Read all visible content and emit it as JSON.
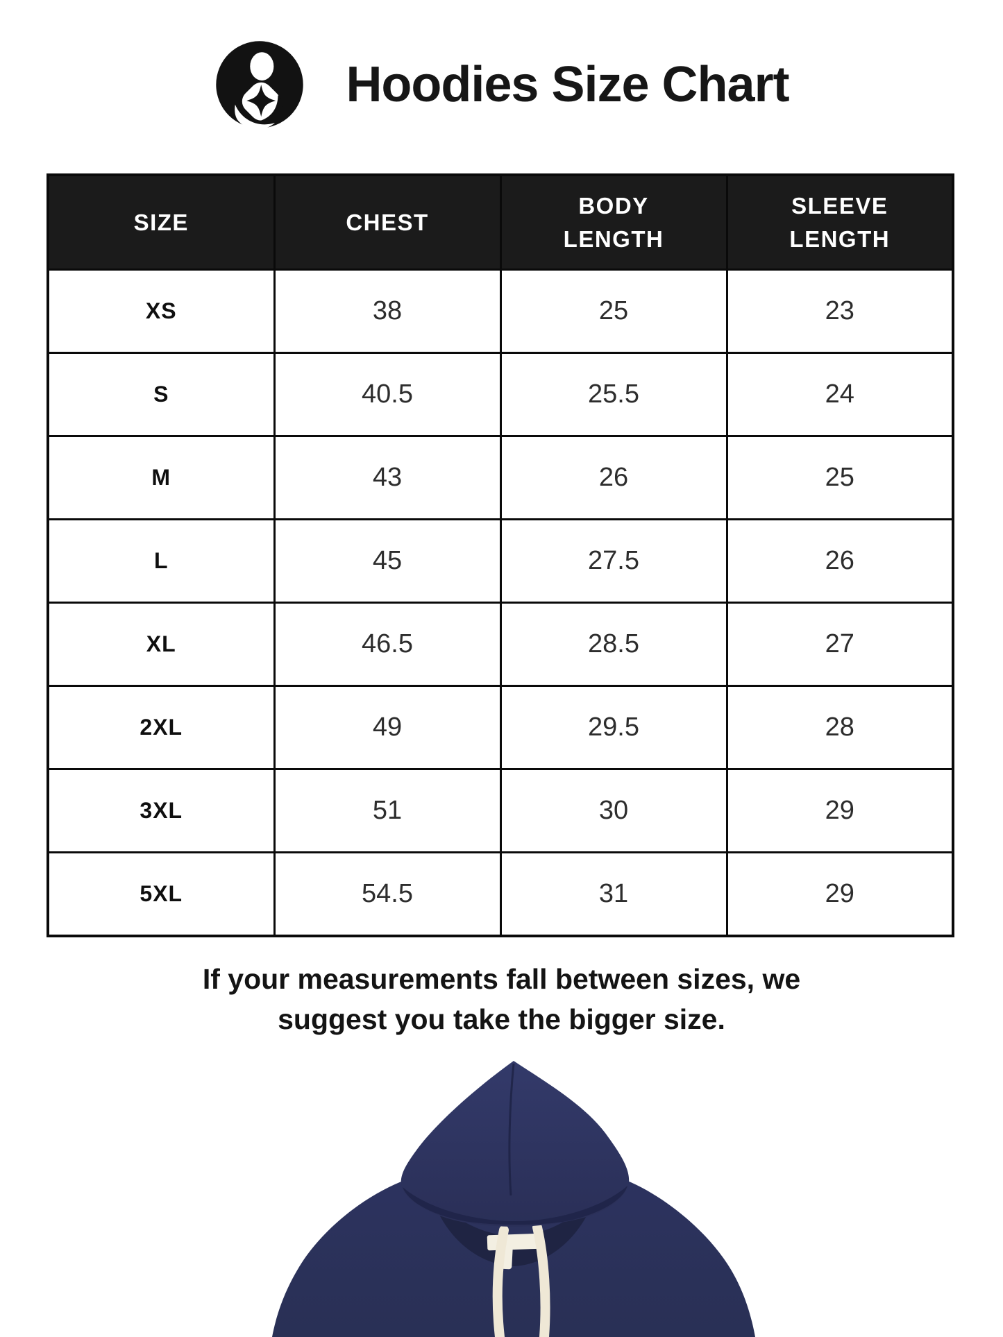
{
  "header": {
    "title": "Hoodies Size Chart"
  },
  "icons": {
    "brand_logo": "mother-and-child-in-black-circle-emblem",
    "hoodie_photo": "navy-blue-hoodie-with-cream-drawstrings-product-photo"
  },
  "chart_data": {
    "type": "table",
    "title": "Hoodies Size Chart",
    "columns": [
      "SIZE",
      "CHEST",
      "BODY LENGTH",
      "SLEEVE LENGTH"
    ],
    "rows": [
      [
        "XS",
        "38",
        "25",
        "23"
      ],
      [
        "S",
        "40.5",
        "25.5",
        "24"
      ],
      [
        "M",
        "43",
        "26",
        "25"
      ],
      [
        "L",
        "45",
        "27.5",
        "26"
      ],
      [
        "XL",
        "46.5",
        "28.5",
        "27"
      ],
      [
        "2XL",
        "49",
        "29.5",
        "28"
      ],
      [
        "3XL",
        "51",
        "30",
        "29"
      ],
      [
        "5XL",
        "54.5",
        "31",
        "29"
      ]
    ]
  },
  "note_lines": [
    "If your measurements fall between sizes, we",
    "suggest you take the bigger size."
  ],
  "colors": {
    "header_bg": "#1b1b1b",
    "header_text": "#ffffff",
    "border": "#0a0a0a",
    "title_text": "#161616",
    "hoodie_navy": "#2d3360",
    "hoodie_navy_dark": "#20254a",
    "drawstring_cream": "#efe8d6",
    "label_white": "#f3efe2"
  }
}
